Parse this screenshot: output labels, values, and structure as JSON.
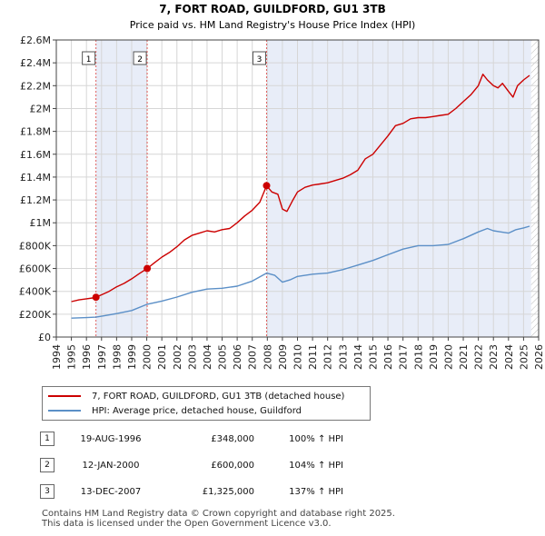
{
  "chart_data": {
    "type": "line",
    "title": "7, FORT ROAD, GUILDFORD, GU1 3TB",
    "subtitle": "Price paid vs. HM Land Registry's House Price Index (HPI)",
    "xlim": [
      1994,
      2026
    ],
    "ylim": [
      0,
      2600000
    ],
    "x_ticks": [
      "1994",
      "1995",
      "1996",
      "1997",
      "1998",
      "1999",
      "2000",
      "2001",
      "2002",
      "2003",
      "2004",
      "2005",
      "2006",
      "2007",
      "2008",
      "2009",
      "2010",
      "2011",
      "2012",
      "2013",
      "2014",
      "2015",
      "2016",
      "2017",
      "2018",
      "2019",
      "2020",
      "2021",
      "2022",
      "2023",
      "2024",
      "2025",
      "2026"
    ],
    "y_ticks": [
      {
        "value": 0,
        "label": "£0"
      },
      {
        "value": 200000,
        "label": "£200K"
      },
      {
        "value": 400000,
        "label": "£400K"
      },
      {
        "value": 600000,
        "label": "£600K"
      },
      {
        "value": 800000,
        "label": "£800K"
      },
      {
        "value": 1000000,
        "label": "£1M"
      },
      {
        "value": 1200000,
        "label": "£1.2M"
      },
      {
        "value": 1400000,
        "label": "£1.4M"
      },
      {
        "value": 1600000,
        "label": "£1.6M"
      },
      {
        "value": 1800000,
        "label": "£1.8M"
      },
      {
        "value": 2000000,
        "label": "£2M"
      },
      {
        "value": 2200000,
        "label": "£2.2M"
      },
      {
        "value": 2400000,
        "label": "£2.4M"
      },
      {
        "value": 2600000,
        "label": "£2.6M"
      }
    ],
    "grid": true,
    "shaded_ranges": [
      [
        1996.63,
        2000.03
      ],
      [
        2007.95,
        2025.5
      ]
    ],
    "hatched_after": 2025.5,
    "series": [
      {
        "name": "7, FORT ROAD, GUILDFORD, GU1 3TB (detached house)",
        "color": "#cc0000",
        "x": [
          1995.0,
          1995.5,
          1996.0,
          1996.4,
          1996.63,
          1997.0,
          1997.5,
          1998.0,
          1998.5,
          1999.0,
          1999.5,
          2000.03,
          2000.5,
          2001.0,
          2001.5,
          2002.0,
          2002.5,
          2003.0,
          2003.5,
          2004.0,
          2004.5,
          2005.0,
          2005.5,
          2006.0,
          2006.5,
          2007.0,
          2007.5,
          2007.95,
          2008.3,
          2008.7,
          2009.0,
          2009.3,
          2009.7,
          2010.0,
          2010.5,
          2011.0,
          2011.5,
          2012.0,
          2012.5,
          2013.0,
          2013.5,
          2014.0,
          2014.5,
          2015.0,
          2015.5,
          2016.0,
          2016.5,
          2017.0,
          2017.5,
          2018.0,
          2018.5,
          2019.0,
          2019.5,
          2020.0,
          2020.5,
          2021.0,
          2021.5,
          2022.0,
          2022.3,
          2022.6,
          2023.0,
          2023.3,
          2023.6,
          2024.0,
          2024.3,
          2024.6,
          2025.0,
          2025.4
        ],
        "values": [
          310000,
          325000,
          335000,
          342000,
          348000,
          370000,
          400000,
          440000,
          470000,
          510000,
          555000,
          600000,
          650000,
          700000,
          740000,
          790000,
          850000,
          890000,
          910000,
          930000,
          920000,
          940000,
          950000,
          1000000,
          1060000,
          1110000,
          1180000,
          1325000,
          1270000,
          1250000,
          1120000,
          1100000,
          1200000,
          1270000,
          1310000,
          1330000,
          1340000,
          1350000,
          1370000,
          1390000,
          1420000,
          1460000,
          1560000,
          1600000,
          1680000,
          1760000,
          1850000,
          1870000,
          1910000,
          1920000,
          1920000,
          1930000,
          1940000,
          1950000,
          2000000,
          2060000,
          2120000,
          2200000,
          2300000,
          2250000,
          2200000,
          2180000,
          2220000,
          2150000,
          2100000,
          2200000,
          2250000,
          2290000
        ]
      },
      {
        "name": "HPI: Average price, detached house, Guildford",
        "color": "#5b8fc7",
        "x": [
          1995.0,
          1996.0,
          1996.63,
          1997.0,
          1998.0,
          1999.0,
          2000.03,
          2001.0,
          2002.0,
          2003.0,
          2004.0,
          2005.0,
          2006.0,
          2007.0,
          2007.95,
          2008.5,
          2009.0,
          2009.5,
          2010.0,
          2011.0,
          2012.0,
          2013.0,
          2014.0,
          2015.0,
          2016.0,
          2017.0,
          2018.0,
          2019.0,
          2020.0,
          2021.0,
          2022.0,
          2022.6,
          2023.0,
          2023.5,
          2024.0,
          2024.5,
          2025.0,
          2025.4
        ],
        "values": [
          165000,
          170000,
          174000,
          182000,
          205000,
          232000,
          287000,
          315000,
          350000,
          392000,
          420000,
          427000,
          445000,
          490000,
          560000,
          540000,
          480000,
          500000,
          530000,
          550000,
          560000,
          590000,
          630000,
          670000,
          720000,
          770000,
          800000,
          800000,
          810000,
          860000,
          920000,
          950000,
          930000,
          920000,
          910000,
          940000,
          955000,
          970000
        ]
      }
    ],
    "sales": [
      {
        "label": "1",
        "x": 1996.63,
        "value": 348000
      },
      {
        "label": "2",
        "x": 2000.03,
        "value": 600000
      },
      {
        "label": "3",
        "x": 2007.95,
        "value": 1325000
      }
    ]
  },
  "legend": {
    "property_label": "7, FORT ROAD, GUILDFORD, GU1 3TB (detached house)",
    "hpi_label": "HPI: Average price, detached house, Guildford"
  },
  "sales_table": [
    {
      "num": "1",
      "date": "19-AUG-1996",
      "price": "£348,000",
      "hpi": "100% ↑ HPI"
    },
    {
      "num": "2",
      "date": "12-JAN-2000",
      "price": "£600,000",
      "hpi": "104% ↑ HPI"
    },
    {
      "num": "3",
      "date": "13-DEC-2007",
      "price": "£1,325,000",
      "hpi": "137% ↑ HPI"
    }
  ],
  "footer": {
    "line1": "Contains HM Land Registry data © Crown copyright and database right 2025.",
    "line2": "This data is licensed under the Open Government Licence v3.0."
  }
}
